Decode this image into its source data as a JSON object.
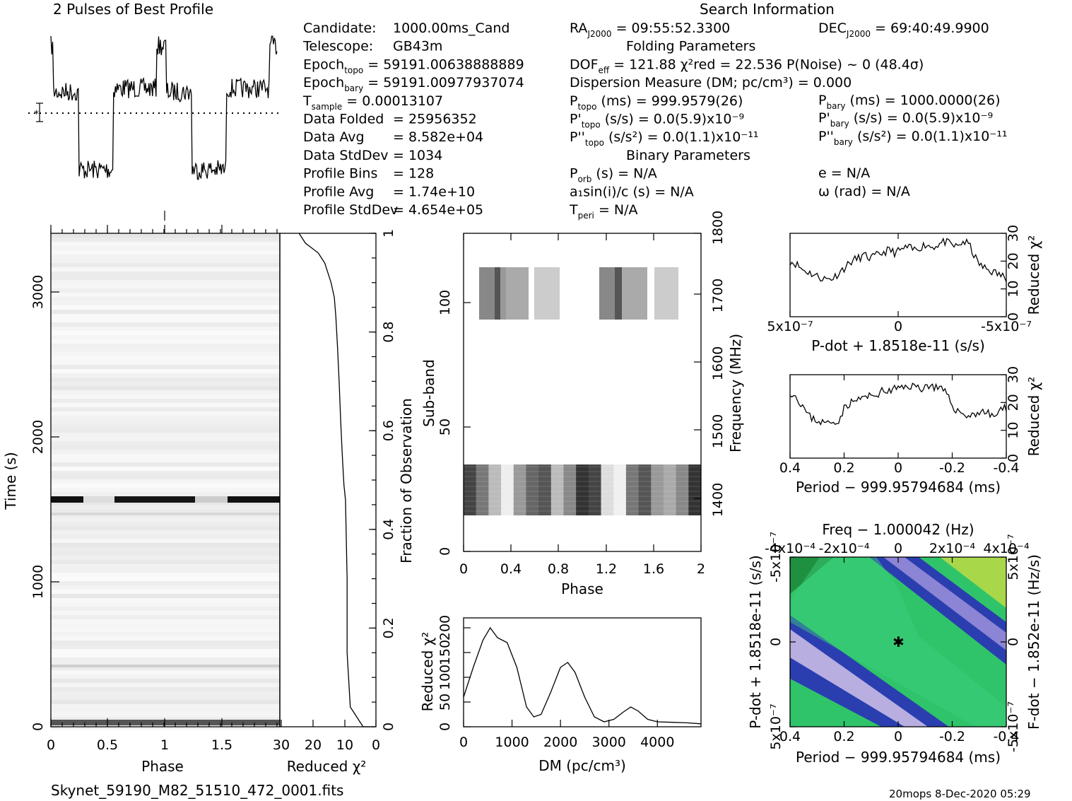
{
  "title_profile": "2 Pulses of Best Profile",
  "title_search": "Search Information",
  "info_col1": [
    {
      "k": "Candidate:",
      "v": "1000.00ms_Cand"
    },
    {
      "k": "Telescope:",
      "v": "GB43m"
    },
    {
      "k": "Epoch",
      "s": "topo",
      "v": "= 59191.00638888889"
    },
    {
      "k": "Epoch",
      "s": "bary",
      "v": "= 59191.00977937074"
    },
    {
      "k": "T",
      "s": "sample",
      "v": "=   0.00013107"
    },
    {
      "k": "Data Folded",
      "v": "=   25956352"
    },
    {
      "k": "Data Avg",
      "v": "=   8.582e+04"
    },
    {
      "k": "Data StdDev",
      "v": "=   1034"
    },
    {
      "k": "Profile Bins",
      "v": "=   128"
    },
    {
      "k": "Profile Avg",
      "v": "=   1.74e+10"
    },
    {
      "k": "Profile StdDev",
      "v": "=   4.654e+05"
    }
  ],
  "info_col2": [
    {
      "k": "RA",
      "s": "J2000",
      "v": "= 09:55:52.3300"
    },
    {
      "k": "",
      "v": "Folding Parameters",
      "center": true
    },
    {
      "k": "DOF",
      "s": "eff",
      "v": "= 121.88  χ²red = 22.536  P(Noise) ~ 0    (48.4σ)"
    },
    {
      "k": "Dispersion Measure (DM; pc/cm³) = 0.000",
      "v": ""
    },
    {
      "k": "P",
      "s": "topo",
      "v": "(ms) =  999.9579(26)"
    },
    {
      "k": "P'",
      "s": "topo",
      "v": "(s/s) = 0.0(5.9)x10⁻⁹"
    },
    {
      "k": "P''",
      "s": "topo",
      "v": "(s/s²) = 0.0(1.1)x10⁻¹¹"
    },
    {
      "k": "",
      "v": "Binary Parameters",
      "center": true
    },
    {
      "k": "P",
      "s": "orb",
      "v": "(s) = N/A"
    },
    {
      "k": "a₁sin(i)/c (s) = N/A",
      "v": ""
    },
    {
      "k": "T",
      "s": "peri",
      "v": "= N/A"
    }
  ],
  "info_col3": [
    {
      "k": "DEC",
      "s": "J2000",
      "v": "= 69:40:49.9900"
    },
    {
      "k": "P",
      "s": "bary",
      "v": "(ms) =  1000.0000(26)"
    },
    {
      "k": "P'",
      "s": "bary",
      "v": "(s/s) = 0.0(5.9)x10⁻⁹"
    },
    {
      "k": "P''",
      "s": "bary",
      "v": "(s/s²) = 0.0(1.1)x10⁻¹¹"
    },
    {
      "k": "e = N/A",
      "v": ""
    },
    {
      "k": "ω (rad) = N/A",
      "v": ""
    }
  ],
  "footer_file": "Skynet_59190_M82_51510_472_0001.fits",
  "footer_stamp": "20mops   8-Dec-2020 05:29",
  "chart_data": [
    {
      "type": "line",
      "name": "profile",
      "title": "2 Pulses of Best Profile",
      "xlim": [
        0,
        2
      ],
      "description_levels": "two-level square-wave profile over two pulses"
    },
    {
      "type": "heatmap",
      "name": "time-phase",
      "xlabel": "Phase",
      "ylabel": "Time (s)",
      "xlim": [
        0,
        2
      ],
      "ylim": [
        0,
        3400
      ],
      "xticks": [
        "0",
        "0.5",
        "1",
        "1.5"
      ],
      "yticks": [
        "0",
        "1000",
        "2000",
        "3000"
      ]
    },
    {
      "type": "line",
      "name": "fraction-chi2",
      "xlabel": "Reduced χ²",
      "ylabel": "Fraction of Observation",
      "xlim": [
        30,
        0
      ],
      "ylim": [
        0,
        1
      ],
      "xticks": [
        "30",
        "20",
        "10",
        "0"
      ],
      "yticks": [
        "0.2",
        "0.4",
        "0.6",
        "0.8",
        "1"
      ],
      "x": [
        4,
        5,
        6,
        7,
        8,
        9,
        9,
        9.5,
        10,
        10.5,
        11,
        11.5,
        12,
        12.5,
        13,
        14,
        15,
        16,
        17,
        18,
        20,
        22,
        24
      ],
      "y": [
        0,
        0.01,
        0.02,
        0.03,
        0.04,
        0.15,
        0.3,
        0.46,
        0.49,
        0.55,
        0.62,
        0.7,
        0.77,
        0.83,
        0.87,
        0.9,
        0.92,
        0.94,
        0.95,
        0.96,
        0.97,
        0.98,
        1.0
      ]
    },
    {
      "type": "heatmap",
      "name": "subband-phase",
      "xlabel": "Phase",
      "ylabel": "Sub-band",
      "y2label": "Frequency (MHz)",
      "xlim": [
        0,
        2
      ],
      "ylim": [
        0,
        128
      ],
      "y2lim": [
        1330,
        1800
      ],
      "xticks": [
        "0",
        "0.4",
        "0.8",
        "1.2",
        "1.6",
        "2"
      ],
      "yticks": [
        "0",
        "50",
        "100"
      ],
      "y2ticks": [
        "1400",
        "1500",
        "1600",
        "1700",
        "1800"
      ]
    },
    {
      "type": "line",
      "name": "dm-chi2",
      "xlabel": "DM (pc/cm³)",
      "ylabel": "Reduced χ²",
      "xlim": [
        0,
        4900
      ],
      "ylim": [
        0,
        220
      ],
      "xticks": [
        "0",
        "1000",
        "2000",
        "3000",
        "4000"
      ],
      "yticks": [
        "0",
        "50",
        "100",
        "150",
        "200"
      ],
      "x": [
        0,
        200,
        400,
        550,
        700,
        900,
        1100,
        1300,
        1450,
        1600,
        1800,
        2000,
        2150,
        2300,
        2500,
        2700,
        2900,
        3100,
        3300,
        3450,
        3600,
        3800,
        4000,
        4300,
        4600,
        4900
      ],
      "y": [
        60,
        120,
        175,
        200,
        180,
        170,
        120,
        40,
        20,
        25,
        70,
        120,
        130,
        110,
        60,
        20,
        10,
        15,
        30,
        40,
        32,
        15,
        10,
        9,
        8,
        6
      ]
    },
    {
      "type": "line",
      "name": "pdot-chi2",
      "xlabel": "P-dot + 1.8518e-11 (s/s)",
      "ylabel": "Reduced χ²",
      "xticks": [
        "5x10⁻⁷",
        "0",
        "-5x10⁻⁷"
      ],
      "yticks": [
        "0",
        "10",
        "20",
        "30"
      ],
      "ylim": [
        0,
        30
      ],
      "y": [
        20,
        19,
        17,
        16,
        15,
        14,
        13.5,
        14,
        16,
        18,
        20,
        21,
        22,
        21,
        22,
        23,
        24,
        23,
        24,
        25,
        24,
        25,
        26,
        25,
        26,
        27,
        26,
        25,
        27,
        26,
        21,
        18,
        17,
        16,
        15,
        14
      ]
    },
    {
      "type": "line",
      "name": "period-chi2",
      "xlabel": "Period − 999.95794684 (ms)",
      "ylabel": "Reduced χ²",
      "xticks": [
        "0.4",
        "0.2",
        "0",
        "-0.2",
        "-0.4"
      ],
      "yticks": [
        "0",
        "10",
        "20",
        "30"
      ],
      "ylim": [
        0,
        30
      ],
      "y": [
        24,
        22,
        19,
        15,
        14,
        13,
        12.5,
        13,
        14,
        19,
        20,
        21,
        22,
        22,
        23,
        24,
        24,
        25,
        25,
        26,
        26,
        25,
        26,
        26,
        25,
        24,
        20,
        17,
        16,
        15,
        16,
        17,
        16,
        15,
        17,
        18
      ]
    },
    {
      "type": "heatmap",
      "name": "p-pdot",
      "title": "Freq − 1.000042 (Hz)",
      "xlabel": "Period − 999.95794684 (ms)",
      "ylabel": "P-dot + 1.8518e-11 (s/s)",
      "y2label": "F-dot − 1.852e-11 (Hz/s)",
      "xticks": [
        "0.4",
        "0.2",
        "0",
        "-0.2",
        "-0.4"
      ],
      "x2ticks": [
        "-4x10⁻⁴",
        "-2x10⁻⁴",
        "0",
        "2x10⁻⁴",
        "4x10⁻⁴"
      ],
      "yticks": [
        "5x10⁻⁷",
        "0",
        "-5x10⁻⁷"
      ],
      "y2ticks": [
        "-5x10⁻⁷",
        "0",
        "5x10⁻⁷"
      ]
    }
  ]
}
